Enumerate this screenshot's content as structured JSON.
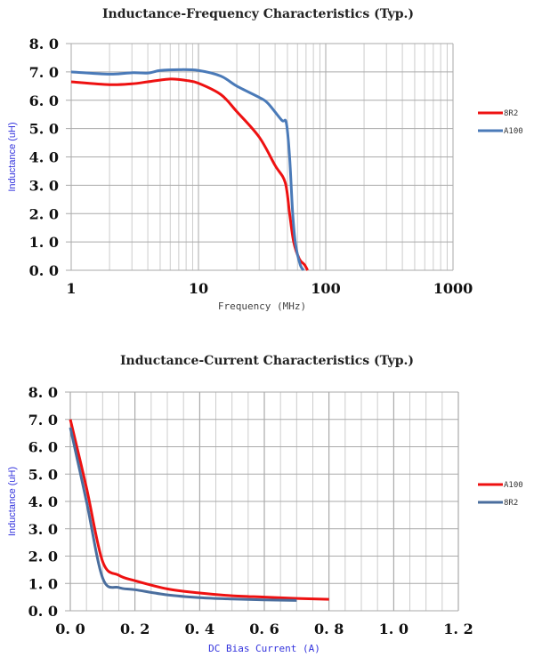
{
  "chart_data": [
    {
      "type": "line",
      "title": "Inductance-Frequency Characteristics (Typ.)",
      "xlabel": "Frequency (MHz)",
      "ylabel": "Inductance (uH)",
      "xscale": "log",
      "xlim": [
        1,
        1000
      ],
      "ylim": [
        0,
        8
      ],
      "xticks": [
        "1",
        "10",
        "100",
        "1000"
      ],
      "yticks": [
        "0.0",
        "1.0",
        "2.0",
        "3.0",
        "4.0",
        "5.0",
        "6.0",
        "7.0",
        "8.0"
      ],
      "grid": true,
      "legend_position": "right",
      "series": [
        {
          "name": "8R2",
          "color": "#ee1111",
          "x": [
            1,
            2,
            3,
            4,
            6,
            8,
            10,
            15,
            20,
            30,
            40,
            48,
            52,
            56,
            62,
            68,
            72
          ],
          "y": [
            6.65,
            6.55,
            6.58,
            6.65,
            6.75,
            6.7,
            6.6,
            6.2,
            5.6,
            4.7,
            3.7,
            3.1,
            2.0,
            1.0,
            0.4,
            0.2,
            0.0
          ]
        },
        {
          "name": "A100",
          "color": "#4a7ab8",
          "x": [
            1,
            2,
            3,
            4,
            5,
            7,
            10,
            15,
            20,
            30,
            35,
            45,
            49,
            52,
            55,
            58,
            63,
            67
          ],
          "y": [
            7.0,
            6.92,
            6.97,
            6.96,
            7.05,
            7.08,
            7.05,
            6.85,
            6.5,
            6.1,
            5.9,
            5.3,
            5.2,
            4.0,
            2.0,
            0.9,
            0.2,
            0.0
          ]
        }
      ]
    },
    {
      "type": "line",
      "title": "Inductance-Current Characteristics (Typ.)",
      "xlabel": "DC Bias Current (A)",
      "ylabel": "Inductance (uH)",
      "xlim": [
        0,
        1.2
      ],
      "ylim": [
        0,
        8
      ],
      "xticks": [
        "0.0",
        "0.2",
        "0.4",
        "0.6",
        "0.8",
        "1.0",
        "1.2"
      ],
      "yticks": [
        "0.0",
        "1.0",
        "2.0",
        "3.0",
        "4.0",
        "5.0",
        "6.0",
        "7.0",
        "8.0"
      ],
      "grid": true,
      "legend_position": "right",
      "series": [
        {
          "name": "A100",
          "color": "#ee1111",
          "x": [
            0,
            0.05,
            0.1,
            0.15,
            0.2,
            0.3,
            0.4,
            0.5,
            0.6,
            0.7,
            0.8
          ],
          "y": [
            7.0,
            4.5,
            1.8,
            1.3,
            1.1,
            0.8,
            0.65,
            0.55,
            0.5,
            0.45,
            0.42
          ]
        },
        {
          "name": "8R2",
          "color": "#4a6e9e",
          "x": [
            0,
            0.05,
            0.1,
            0.15,
            0.2,
            0.3,
            0.4,
            0.5,
            0.6,
            0.7
          ],
          "y": [
            6.7,
            4.0,
            1.2,
            0.85,
            0.77,
            0.58,
            0.48,
            0.43,
            0.4,
            0.38
          ]
        }
      ]
    }
  ]
}
